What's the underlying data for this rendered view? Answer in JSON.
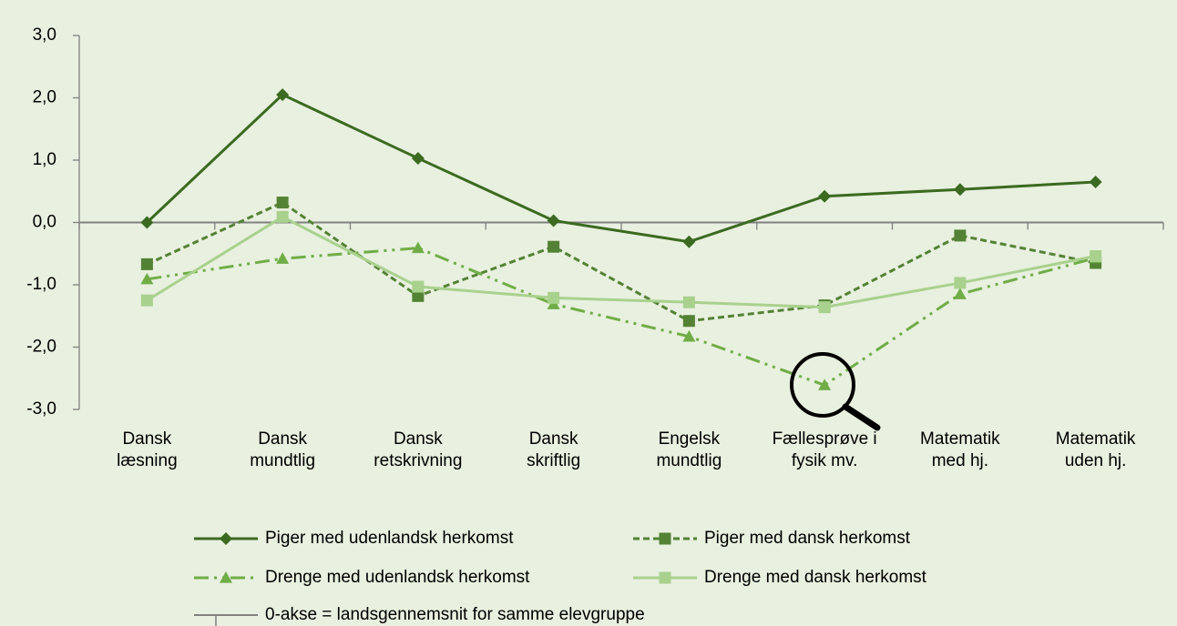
{
  "chart_data": {
    "type": "line",
    "categories": [
      "Dansk\nlæsning",
      "Dansk\nmundtlig",
      "Dansk\nretskrivning",
      "Dansk\nskriftlig",
      "Engelsk\nmundtlig",
      "Fællesprøve i\nfysik mv.",
      "Matematik\nmed hj.",
      "Matematik\nuden hj."
    ],
    "series": [
      {
        "name": "Piger med udenlandsk herkomst",
        "color": "#3b6a20",
        "marker": "diamond",
        "line_style": "solid",
        "values": [
          0.0,
          2.05,
          1.03,
          0.03,
          -0.31,
          0.42,
          0.53,
          0.65
        ]
      },
      {
        "name": "Piger med dansk herkomst",
        "color": "#548235",
        "marker": "square",
        "line_style": "dashed",
        "values": [
          -0.67,
          0.32,
          -1.18,
          -0.39,
          -1.58,
          -1.33,
          -0.21,
          -0.65
        ]
      },
      {
        "name": "Drenge med udenlandsk herkomst",
        "color": "#70ad47",
        "marker": "triangle",
        "line_style": "dashdot",
        "values": [
          -0.91,
          -0.58,
          -0.41,
          -1.31,
          -1.83,
          -2.61,
          -1.15,
          -0.57
        ]
      },
      {
        "name": "Drenge med dansk herkomst",
        "color": "#a9d18e",
        "marker": "square",
        "line_style": "solid",
        "values": [
          -1.25,
          0.09,
          -1.03,
          -1.21,
          -1.28,
          -1.36,
          -0.97,
          -0.54
        ]
      }
    ],
    "zero_line_label": "0-akse = landsgennemsnit for samme elevgruppe",
    "zero_line_color": "#808080",
    "ylim": [
      -3,
      3
    ],
    "yticks": [
      {
        "value": -3,
        "label": "-3,0"
      },
      {
        "value": -2,
        "label": "-2,0"
      },
      {
        "value": -1,
        "label": "-1,0"
      },
      {
        "value": 0,
        "label": "0,0"
      },
      {
        "value": 1,
        "label": "1,0"
      },
      {
        "value": 2,
        "label": "2,0"
      },
      {
        "value": 3,
        "label": "3,0"
      }
    ]
  }
}
